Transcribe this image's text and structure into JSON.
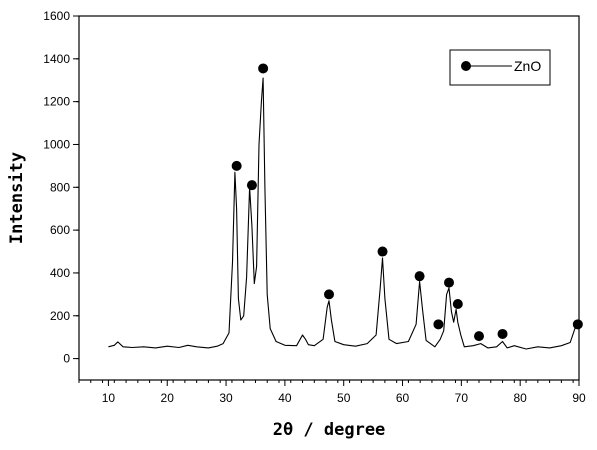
{
  "chart_data": {
    "type": "line",
    "title": "",
    "xlabel": "2θ / degree",
    "ylabel": "Intensity",
    "xlim": [
      5,
      90
    ],
    "ylim": [
      -100,
      1600
    ],
    "x_ticks": [
      10,
      20,
      30,
      40,
      50,
      60,
      70,
      80,
      90
    ],
    "y_ticks": [
      0,
      200,
      400,
      600,
      800,
      1000,
      1200,
      1400,
      1600
    ],
    "grid": false,
    "legend": {
      "position": "top-right",
      "entries": [
        "ZnO"
      ]
    },
    "series": [
      {
        "name": "ZnO",
        "color": "#000000",
        "x": [
          10,
          11,
          11.6,
          12.5,
          14,
          16,
          18,
          20,
          22,
          23.5,
          25,
          27,
          28.5,
          29.5,
          30.5,
          31.1,
          31.5,
          31.8,
          32.1,
          32.5,
          33.0,
          33.5,
          34.0,
          34.4,
          34.8,
          35.2,
          35.6,
          36.0,
          36.3,
          36.6,
          37.0,
          37.5,
          38.5,
          40,
          42,
          43,
          43.5,
          44,
          45,
          46.5,
          47.2,
          47.5,
          47.9,
          48.5,
          50,
          52,
          54,
          55.5,
          56.2,
          56.6,
          57.0,
          57.7,
          59,
          61,
          62.3,
          62.9,
          63.4,
          64,
          65.5,
          66.4,
          67,
          67.5,
          67.9,
          68.3,
          68.7,
          69.1,
          69.4,
          69.9,
          70.5,
          72,
          73.3,
          74.5,
          76,
          77.0,
          77.8,
          79,
          81,
          83,
          85,
          87,
          88.5,
          89.3,
          90
        ],
        "values": [
          55,
          62,
          78,
          55,
          52,
          55,
          50,
          58,
          52,
          62,
          55,
          50,
          58,
          70,
          120,
          450,
          870,
          700,
          280,
          180,
          200,
          380,
          800,
          620,
          350,
          430,
          1000,
          1200,
          1310,
          800,
          300,
          140,
          80,
          62,
          60,
          110,
          90,
          65,
          60,
          90,
          240,
          270,
          180,
          80,
          65,
          58,
          70,
          110,
          330,
          470,
          280,
          90,
          70,
          80,
          160,
          360,
          230,
          85,
          55,
          90,
          130,
          300,
          330,
          220,
          170,
          230,
          170,
          110,
          55,
          60,
          70,
          50,
          55,
          80,
          50,
          60,
          45,
          55,
          50,
          60,
          75,
          140,
          150
        ],
        "markers": [
          {
            "x": 31.8,
            "y": 900
          },
          {
            "x": 34.4,
            "y": 810
          },
          {
            "x": 36.3,
            "y": 1355
          },
          {
            "x": 47.5,
            "y": 300
          },
          {
            "x": 56.6,
            "y": 500
          },
          {
            "x": 62.9,
            "y": 385
          },
          {
            "x": 66.1,
            "y": 160
          },
          {
            "x": 67.9,
            "y": 355
          },
          {
            "x": 69.4,
            "y": 255
          },
          {
            "x": 73.0,
            "y": 105
          },
          {
            "x": 77.0,
            "y": 115
          },
          {
            "x": 89.8,
            "y": 160
          }
        ]
      }
    ]
  }
}
